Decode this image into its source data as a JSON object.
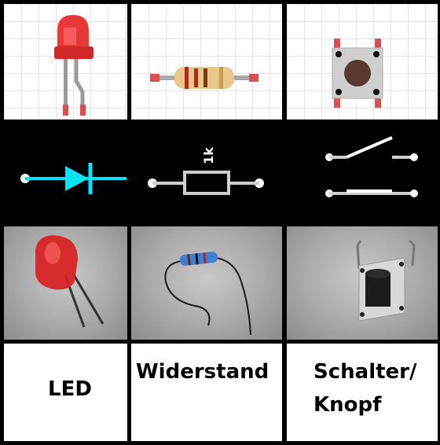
{
  "labels": {
    "led": "LED",
    "resistor": "Widerstand",
    "switch_line1": "Schalter/",
    "switch_line2": "Knopf"
  },
  "schematic": {
    "resistor_value": "1k"
  },
  "colors": {
    "diode_symbol": "#00e5ff",
    "schematic_lines": "#cfcfcf",
    "background": "#000000",
    "led_red": "#e23030"
  }
}
